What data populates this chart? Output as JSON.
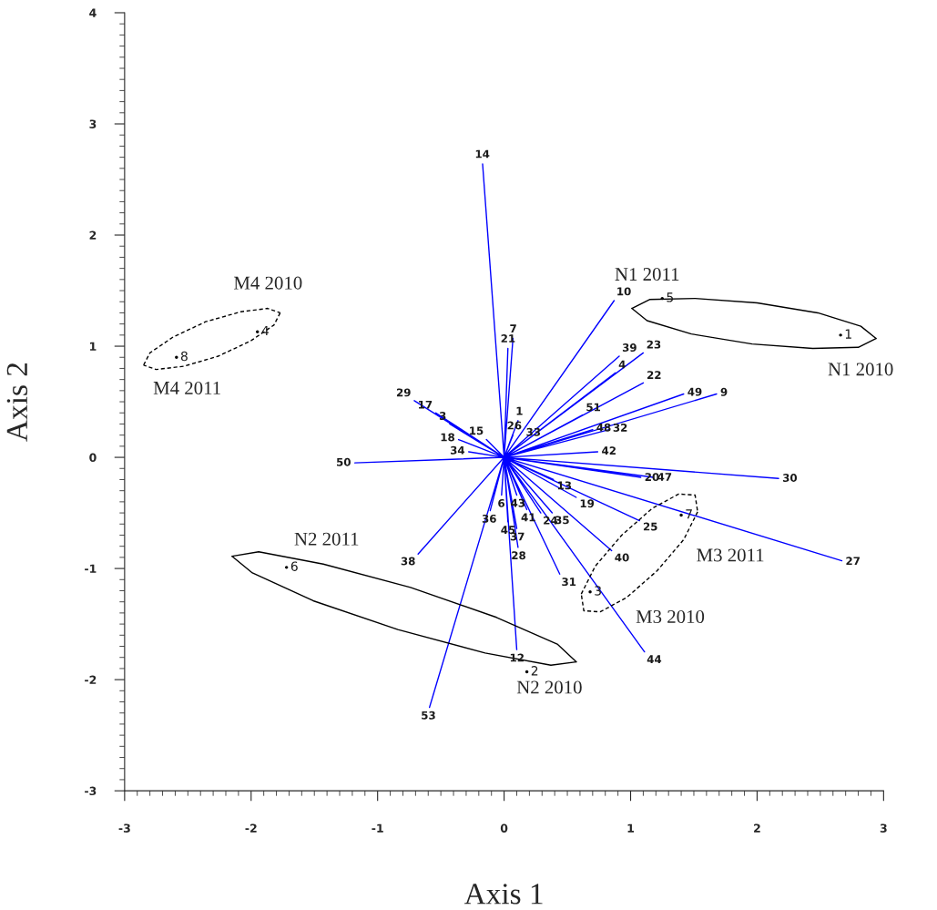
{
  "chart_data": {
    "type": "line",
    "xlabel": "Axis 1",
    "ylabel": "Axis 2",
    "xlim": [
      -3,
      3
    ],
    "xticks": [
      -3,
      -2,
      -1,
      0,
      1,
      2,
      3
    ],
    "ylim": [
      -3,
      4
    ],
    "yticks": [
      -3,
      -2,
      -1,
      0,
      1,
      2,
      3,
      4
    ],
    "series": [
      {
        "color": "#0000ff",
        "line_style": "solid",
        "x": [
          0,
          -0.17,
          0,
          0.07,
          0,
          0.03,
          0,
          0.87,
          0,
          0.91,
          0,
          1.1,
          0,
          0.88,
          0,
          1.1,
          0,
          1.42,
          0,
          1.68,
          0,
          0.62,
          0,
          0.7,
          0,
          0.83,
          0,
          0.11,
          0,
          0.07,
          0,
          0.15,
          0,
          0.74,
          0,
          -0.71,
          0,
          -0.54,
          0,
          -0.43,
          0,
          -0.36,
          0,
          -0.14,
          0,
          -0.28,
          0,
          -1.18,
          0,
          0.39,
          0,
          0.57,
          0,
          1.08,
          0,
          1.18,
          0,
          2.17,
          0,
          1.07,
          0,
          2.67,
          0,
          0.85,
          0,
          1.11,
          0,
          0.44,
          0,
          0.1,
          0,
          -0.59,
          0,
          -0.68,
          0,
          -0.11,
          0,
          0.03,
          0,
          0.1,
          0,
          0.11,
          0,
          0.18,
          0,
          0.29,
          0,
          0.38,
          0,
          -0.02,
          0,
          0.1
        ],
        "values": [
          0,
          2.64,
          0,
          1.07,
          0,
          0.98,
          0,
          1.41,
          0,
          0.91,
          0,
          0.94,
          0,
          0.76,
          0,
          0.67,
          0,
          0.57,
          0,
          0.57,
          0,
          0.38,
          0,
          0.25,
          0,
          0.25,
          0,
          0.33,
          0,
          0.2,
          0,
          0.15,
          0,
          0.05,
          0,
          0.51,
          0,
          0.4,
          0,
          0.3,
          0,
          0.16,
          0,
          0.16,
          0,
          0.05,
          0,
          -0.05,
          0,
          -0.2,
          0,
          -0.36,
          0,
          -0.18,
          0,
          -0.18,
          0,
          -0.19,
          0,
          -0.57,
          0,
          -0.93,
          0,
          -0.84,
          0,
          -1.75,
          0,
          -1.05,
          0,
          -1.73,
          0,
          -2.25,
          0,
          -0.87,
          0,
          -0.48,
          0,
          -0.58,
          0,
          -0.64,
          0,
          -0.81,
          0,
          -0.47,
          0,
          -0.5,
          0,
          -0.5,
          0,
          -0.34,
          0,
          -0.34
        ]
      },
      {
        "type": "scatter",
        "color": "#000000",
        "marker": "circle",
        "x": [
          2.66,
          1.25,
          -1.95,
          -2.59,
          -1.72,
          0.18,
          0.68,
          1.4
        ],
        "values": [
          1.1,
          1.43,
          1.13,
          0.9,
          -0.99,
          -1.93,
          -1.21,
          -0.52
        ]
      },
      {
        "type": "line",
        "color": "#000000",
        "line_style": "solid",
        "x": [
          2.94,
          2.8,
          2.44,
          1.96,
          1.48,
          1.13,
          1.01
        ],
        "values": [
          1.07,
          0.99,
          0.98,
          1.02,
          1.11,
          1.23,
          1.34
        ]
      },
      {
        "type": "line",
        "color": "#000000",
        "line_style": "solid",
        "x": [
          1.01,
          1.15,
          1.51,
          2.0,
          2.48,
          2.82,
          2.94
        ],
        "values": [
          1.34,
          1.42,
          1.43,
          1.39,
          1.3,
          1.18,
          1.07
        ]
      },
      {
        "type": "line",
        "color": "#000000",
        "line_style": "dashed",
        "x": [
          -1.77,
          -1.82,
          -2.0,
          -2.26,
          -2.53,
          -2.75,
          -2.85
        ],
        "values": [
          1.3,
          1.19,
          1.05,
          0.91,
          0.82,
          0.79,
          0.83
        ]
      },
      {
        "type": "line",
        "color": "#000000",
        "line_style": "dashed",
        "x": [
          -2.85,
          -2.8,
          -2.62,
          -2.36,
          -2.08,
          -1.87,
          -1.77
        ],
        "values": [
          0.83,
          0.94,
          1.08,
          1.22,
          1.31,
          1.34,
          1.3
        ]
      },
      {
        "type": "line",
        "color": "#000000",
        "line_style": "solid",
        "x": [
          0.57,
          0.37,
          -0.15,
          -0.84,
          -1.51,
          -1.99,
          -2.15
        ],
        "values": [
          -1.84,
          -1.87,
          -1.76,
          -1.55,
          -1.29,
          -1.04,
          -0.89
        ]
      },
      {
        "type": "line",
        "color": "#000000",
        "line_style": "solid",
        "x": [
          -2.15,
          -1.94,
          -1.43,
          -0.74,
          -0.06,
          0.42,
          0.57
        ],
        "values": [
          -0.89,
          -0.85,
          -0.96,
          -1.17,
          -1.44,
          -1.68,
          -1.84
        ]
      },
      {
        "type": "line",
        "color": "#000000",
        "line_style": "dashed",
        "x": [
          1.53,
          1.42,
          1.21,
          0.97,
          0.76,
          0.63,
          0.61
        ],
        "values": [
          -0.49,
          -0.74,
          -1.02,
          -1.26,
          -1.39,
          -1.38,
          -1.23
        ]
      },
      {
        "type": "line",
        "color": "#000000",
        "line_style": "dashed",
        "x": [
          0.61,
          0.72,
          0.93,
          1.17,
          1.38,
          1.51,
          1.53
        ],
        "values": [
          -1.23,
          -0.98,
          -0.7,
          -0.46,
          -0.33,
          -0.34,
          -0.49
        ]
      }
    ],
    "annotations": [
      {
        "text": "14",
        "x": -0.17,
        "y": 2.64
      },
      {
        "text": "7",
        "x": 0.07,
        "y": 1.07
      },
      {
        "text": "21",
        "x": 0.03,
        "y": 0.98
      },
      {
        "text": "10",
        "x": 0.87,
        "y": 1.41
      },
      {
        "text": "39",
        "x": 0.91,
        "y": 0.91
      },
      {
        "text": "23",
        "x": 1.1,
        "y": 0.94
      },
      {
        "text": "4",
        "x": 0.88,
        "y": 0.76
      },
      {
        "text": "22",
        "x": 1.1,
        "y": 0.67
      },
      {
        "text": "49",
        "x": 1.42,
        "y": 0.57
      },
      {
        "text": "9",
        "x": 1.68,
        "y": 0.57
      },
      {
        "text": "51",
        "x": 0.62,
        "y": 0.38
      },
      {
        "text": "48",
        "x": 0.7,
        "y": 0.25
      },
      {
        "text": "32",
        "x": 0.83,
        "y": 0.25
      },
      {
        "text": "1",
        "x": 0.11,
        "y": 0.33
      },
      {
        "text": "26",
        "x": 0.07,
        "y": 0.2
      },
      {
        "text": "33",
        "x": 0.15,
        "y": 0.15
      },
      {
        "text": "42",
        "x": 0.74,
        "y": 0.05
      },
      {
        "text": "29",
        "x": -0.71,
        "y": 0.51
      },
      {
        "text": "17",
        "x": -0.54,
        "y": 0.4
      },
      {
        "text": "3",
        "x": -0.43,
        "y": 0.3
      },
      {
        "text": "18",
        "x": -0.36,
        "y": 0.16
      },
      {
        "text": "15",
        "x": -0.14,
        "y": 0.16
      },
      {
        "text": "34",
        "x": -0.28,
        "y": 0.05
      },
      {
        "text": "50",
        "x": -1.18,
        "y": -0.05
      },
      {
        "text": "13",
        "x": 0.39,
        "y": -0.2
      },
      {
        "text": "19",
        "x": 0.57,
        "y": -0.36
      },
      {
        "text": "20",
        "x": 1.08,
        "y": -0.18
      },
      {
        "text": "47",
        "x": 1.18,
        "y": -0.18
      },
      {
        "text": "30",
        "x": 2.17,
        "y": -0.19
      },
      {
        "text": "25",
        "x": 1.07,
        "y": -0.57
      },
      {
        "text": "27",
        "x": 2.67,
        "y": -0.93
      },
      {
        "text": "40",
        "x": 0.85,
        "y": -0.84
      },
      {
        "text": "44",
        "x": 1.11,
        "y": -1.75
      },
      {
        "text": "31",
        "x": 0.44,
        "y": -1.05
      },
      {
        "text": "12",
        "x": 0.1,
        "y": -1.73
      },
      {
        "text": "53",
        "x": -0.59,
        "y": -2.25
      },
      {
        "text": "38",
        "x": -0.68,
        "y": -0.87
      },
      {
        "text": "36",
        "x": -0.11,
        "y": -0.48
      },
      {
        "text": "45",
        "x": 0.03,
        "y": -0.58
      },
      {
        "text": "37",
        "x": 0.1,
        "y": -0.64
      },
      {
        "text": "28",
        "x": 0.11,
        "y": -0.81
      },
      {
        "text": "41",
        "x": 0.18,
        "y": -0.47
      },
      {
        "text": "24",
        "x": 0.29,
        "y": -0.5
      },
      {
        "text": "35",
        "x": 0.38,
        "y": -0.5
      },
      {
        "text": "6",
        "x": -0.02,
        "y": -0.34
      },
      {
        "text": "43",
        "x": 0.1,
        "y": -0.34
      },
      {
        "text": "1",
        "x": 2.66,
        "y": 1.1
      },
      {
        "text": "5",
        "x": 1.25,
        "y": 1.43
      },
      {
        "text": "4",
        "x": -1.95,
        "y": 1.13
      },
      {
        "text": "8",
        "x": -2.59,
        "y": 0.9
      },
      {
        "text": "6",
        "x": -1.72,
        "y": -0.99
      },
      {
        "text": "2",
        "x": 0.18,
        "y": -1.93
      },
      {
        "text": "3",
        "x": 0.68,
        "y": -1.21
      },
      {
        "text": "7",
        "x": 1.4,
        "y": -0.52
      },
      {
        "text": "N1 2011",
        "x": 1.15,
        "y": 1.42
      },
      {
        "text": "N1 2010",
        "x": 2.8,
        "y": 0.99
      },
      {
        "text": "M4 2010",
        "x": -1.87,
        "y": 1.34
      },
      {
        "text": "M4 2011",
        "x": -2.53,
        "y": 0.82
      },
      {
        "text": "N2 2011",
        "x": -1.43,
        "y": -0.96
      },
      {
        "text": "N2 2010",
        "x": 0.37,
        "y": -1.87
      },
      {
        "text": "M3 2011",
        "x": 1.42,
        "y": -0.74
      },
      {
        "text": "M3 2010",
        "x": 0.97,
        "y": -1.26
      }
    ]
  }
}
